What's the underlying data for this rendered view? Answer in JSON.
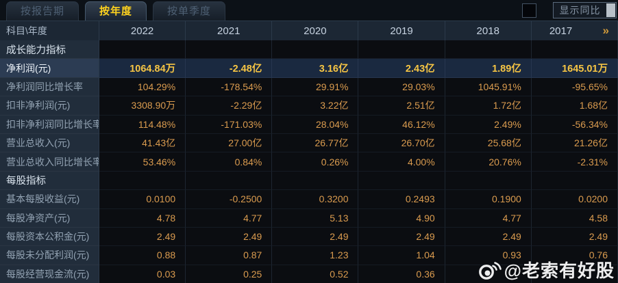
{
  "tabs": {
    "items": [
      {
        "label": "按报告期",
        "active": false
      },
      {
        "label": "按年度",
        "active": true
      },
      {
        "label": "按单季度",
        "active": false
      }
    ]
  },
  "controls": {
    "show_yoy_label": "显示同比",
    "checkbox_checked": false
  },
  "table": {
    "corner_header": "科目\\年度",
    "year_headers": [
      "2022",
      "2021",
      "2020",
      "2019",
      "2018",
      "2017"
    ],
    "more_icon": "»",
    "rows": [
      {
        "type": "section",
        "label": "成长能力指标",
        "values": [
          "",
          "",
          "",
          "",
          "",
          ""
        ]
      },
      {
        "type": "highlight",
        "label": "净利润(元)",
        "values": [
          "1064.84万",
          "-2.48亿",
          "3.16亿",
          "2.43亿",
          "1.89亿",
          "1645.01万"
        ]
      },
      {
        "type": "normal",
        "label": "净利润同比增长率",
        "values": [
          "104.29%",
          "-178.54%",
          "29.91%",
          "29.03%",
          "1045.91%",
          "-95.65%"
        ]
      },
      {
        "type": "normal",
        "label": "扣非净利润(元)",
        "values": [
          "3308.90万",
          "-2.29亿",
          "3.22亿",
          "2.51亿",
          "1.72亿",
          "1.68亿"
        ]
      },
      {
        "type": "normal",
        "label": "扣非净利润同比增长率",
        "values": [
          "114.48%",
          "-171.03%",
          "28.04%",
          "46.12%",
          "2.49%",
          "-56.34%"
        ]
      },
      {
        "type": "normal",
        "label": "营业总收入(元)",
        "values": [
          "41.43亿",
          "27.00亿",
          "26.77亿",
          "26.70亿",
          "25.68亿",
          "21.26亿"
        ]
      },
      {
        "type": "normal",
        "label": "营业总收入同比增长率",
        "values": [
          "53.46%",
          "0.84%",
          "0.26%",
          "4.00%",
          "20.76%",
          "-2.31%"
        ]
      },
      {
        "type": "section",
        "label": "每股指标",
        "values": [
          "",
          "",
          "",
          "",
          "",
          ""
        ]
      },
      {
        "type": "normal",
        "label": "基本每股收益(元)",
        "values": [
          "0.0100",
          "-0.2500",
          "0.3200",
          "0.2493",
          "0.1900",
          "0.0200"
        ]
      },
      {
        "type": "normal",
        "label": "每股净资产(元)",
        "values": [
          "4.78",
          "4.77",
          "5.13",
          "4.90",
          "4.77",
          "4.58"
        ]
      },
      {
        "type": "normal",
        "label": "每股资本公积金(元)",
        "values": [
          "2.49",
          "2.49",
          "2.49",
          "2.49",
          "2.49",
          "2.49"
        ]
      },
      {
        "type": "normal",
        "label": "每股未分配利润(元)",
        "values": [
          "0.88",
          "0.87",
          "1.23",
          "1.04",
          "0.93",
          "0.76"
        ]
      },
      {
        "type": "normal",
        "label": "每股经营现金流(元)",
        "values": [
          "0.03",
          "0.25",
          "0.52",
          "0.36",
          "",
          ""
        ]
      }
    ]
  },
  "watermark": {
    "text": "@老索有好股"
  },
  "colors": {
    "accent_gold": "#f6c544",
    "value_orange": "#db9c4f",
    "active_tab_text": "#ffd21e",
    "header_bg": "#1c2734",
    "label_bg": "#212d3b",
    "highlight_row_bg": "#1a2940"
  }
}
